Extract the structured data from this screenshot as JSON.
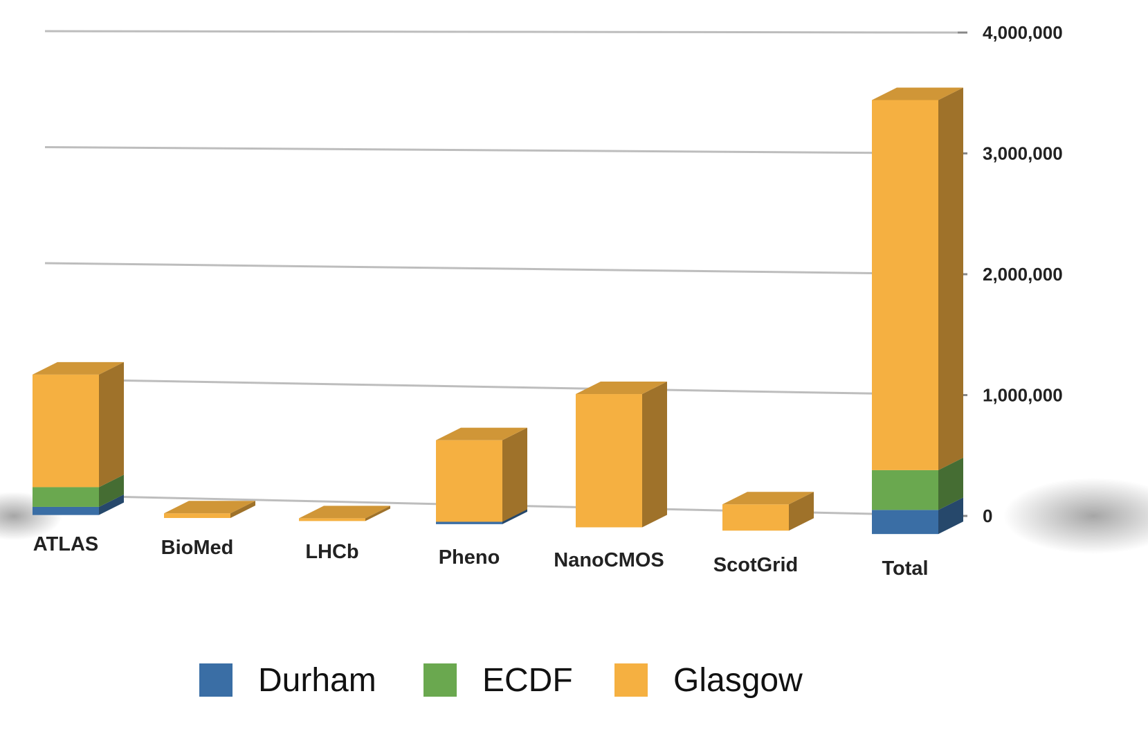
{
  "chart_data": {
    "type": "bar",
    "stacked": true,
    "title": "",
    "xlabel": "",
    "ylabel": "",
    "categories": [
      "ATLAS",
      "BioMed",
      "LHCb",
      "Pheno",
      "NanoCMOS",
      "ScotGrid",
      "Total"
    ],
    "series": [
      {
        "name": "Durham",
        "color": "#3a6ea5",
        "values": [
          70000,
          0,
          0,
          20000,
          0,
          0,
          200000
        ]
      },
      {
        "name": "ECDF",
        "color": "#6aa84f",
        "values": [
          170000,
          0,
          0,
          0,
          0,
          0,
          330000
        ]
      },
      {
        "name": "Glasgow",
        "color": "#f5b041",
        "values": [
          970000,
          40000,
          20000,
          690000,
          1120000,
          220000,
          3070000
        ]
      }
    ],
    "yticks": [
      "0",
      "1,000,000",
      "2,000,000",
      "3,000,000",
      "4,000,000"
    ],
    "ylim": [
      0,
      4000000
    ],
    "grid": true,
    "legend_position": "bottom"
  }
}
